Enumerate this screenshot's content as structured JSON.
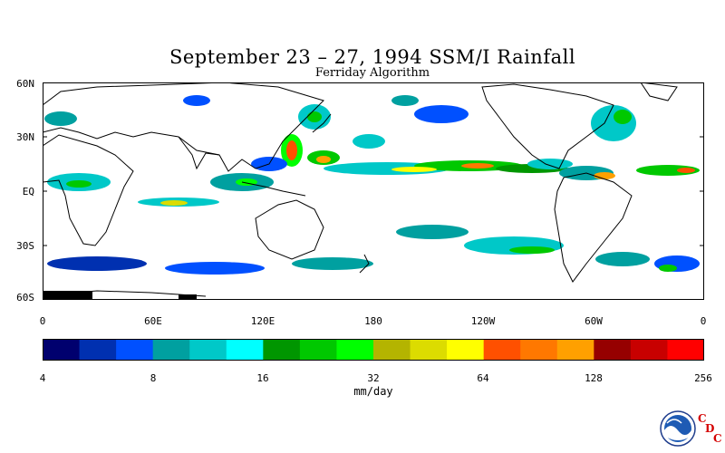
{
  "title": "September 23 – 27, 1994 SSM/I Rainfall",
  "subtitle": "Ferriday Algorithm",
  "lat_ticks": [
    "60N",
    "30N",
    "EQ",
    "30S",
    "60S"
  ],
  "lon_ticks": [
    "0",
    "60E",
    "120E",
    "180",
    "120W",
    "60W",
    "0"
  ],
  "colorbar": {
    "colors": [
      "#00006e",
      "#0030b0",
      "#0050ff",
      "#00a0a0",
      "#00c8c8",
      "#00ffff",
      "#009600",
      "#00c800",
      "#00ff00",
      "#b4b400",
      "#dcdc00",
      "#ffff00",
      "#ff5000",
      "#ff7800",
      "#ffa000",
      "#960000",
      "#c80000",
      "#ff0000"
    ],
    "tick_labels": [
      "4",
      "8",
      "16",
      "32",
      "64",
      "128",
      "256"
    ],
    "units": "mm/day",
    "scale": "log2"
  },
  "logo": {
    "name": "NOAA",
    "letters": [
      "C",
      "D",
      "C"
    ]
  }
}
